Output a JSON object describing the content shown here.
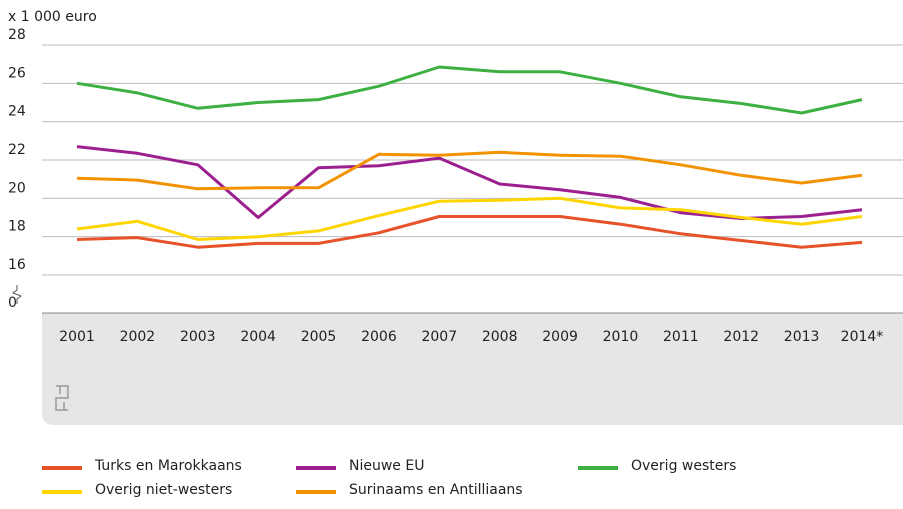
{
  "chart_data": {
    "type": "line",
    "y_axis_label": "x 1 000 euro",
    "categories": [
      "2001",
      "2002",
      "2003",
      "2004",
      "2005",
      "2006",
      "2007",
      "2008",
      "2009",
      "2010",
      "2011",
      "2012",
      "2013",
      "2014*"
    ],
    "ylim": [
      0,
      28
    ],
    "y_break": [
      0,
      16
    ],
    "yticks": [
      0,
      16,
      18,
      20,
      22,
      24,
      26,
      28
    ],
    "grid": true,
    "series": [
      {
        "name": "Turks en Marokkaans",
        "color": "#e8522a",
        "values": [
          17.85,
          17.95,
          17.45,
          17.65,
          17.65,
          18.2,
          19.05,
          19.05,
          19.05,
          18.65,
          18.15,
          17.8,
          17.45,
          17.7
        ]
      },
      {
        "name": "Nieuwe EU",
        "color": "#9c1f8f",
        "values": [
          22.7,
          22.35,
          21.75,
          19.0,
          21.6,
          21.7,
          22.1,
          20.75,
          20.45,
          20.05,
          19.25,
          18.95,
          19.05,
          19.4
        ]
      },
      {
        "name": "Overig westers",
        "color": "#3db042",
        "values": [
          26.0,
          25.5,
          24.7,
          25.0,
          25.15,
          25.85,
          26.85,
          26.6,
          26.6,
          26.0,
          25.3,
          24.95,
          24.45,
          25.15
        ]
      },
      {
        "name": "Overig niet-westers",
        "color": "#ffd500",
        "values": [
          18.4,
          18.8,
          17.85,
          18.0,
          18.3,
          19.1,
          19.85,
          19.9,
          20.0,
          19.5,
          19.4,
          19.0,
          18.65,
          19.05
        ]
      },
      {
        "name": "Surinaams en Antilliaans",
        "color": "#f39200",
        "values": [
          21.05,
          20.95,
          20.5,
          20.55,
          20.55,
          22.3,
          22.25,
          22.4,
          22.25,
          22.2,
          21.75,
          21.2,
          20.8,
          21.2
        ]
      }
    ]
  }
}
